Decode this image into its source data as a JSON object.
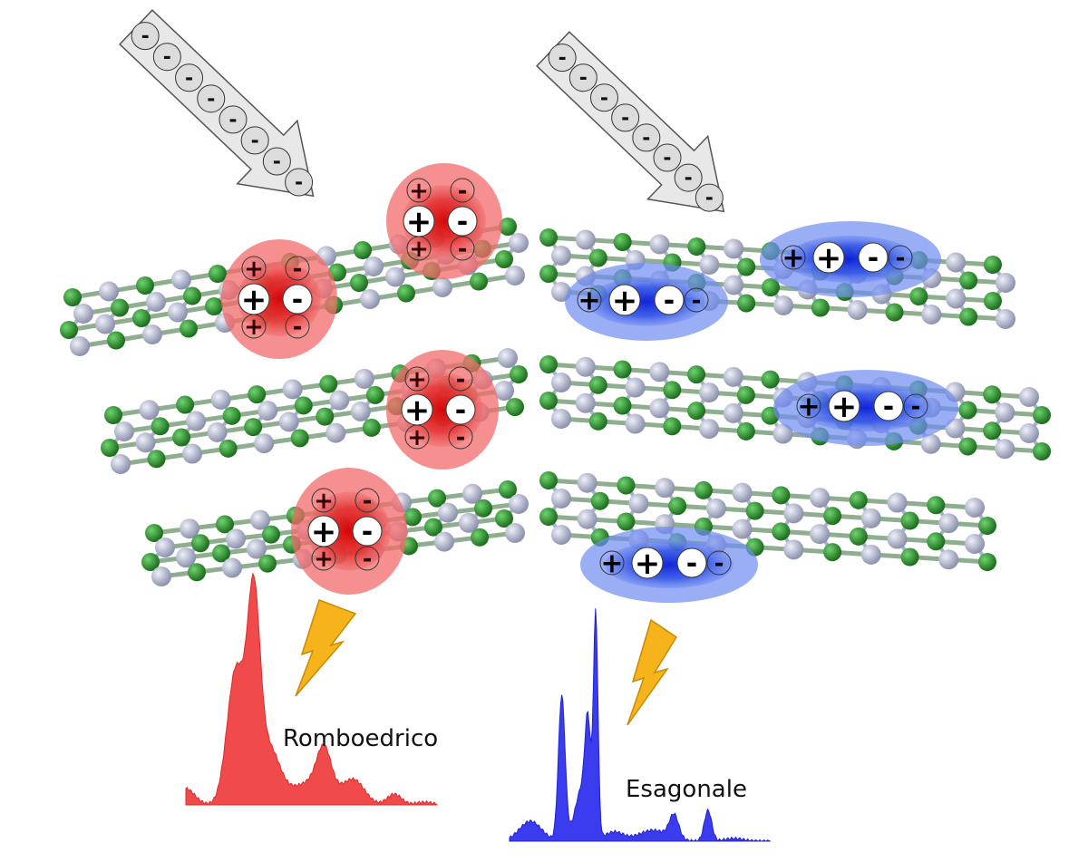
{
  "panels": [
    {
      "id": "rhombohedral",
      "label": "Romboedrico",
      "accent": "#e53935",
      "spectrum_color": "#f04a4a"
    },
    {
      "id": "hexagonal",
      "label": "Esagonale",
      "accent": "#1a3fe0",
      "spectrum_color": "#3b3bf0"
    }
  ],
  "colors": {
    "boron_atom": "#2e8b2e",
    "nitrogen_atom": "#a9adc4",
    "arrow_fill": "#e8e8e8",
    "lightning": "#f6b31c"
  },
  "symbols": {
    "electron": "-",
    "hole": "+"
  },
  "icons": [
    "electron-beam-arrow-icon",
    "lightning-bolt-icon"
  ]
}
